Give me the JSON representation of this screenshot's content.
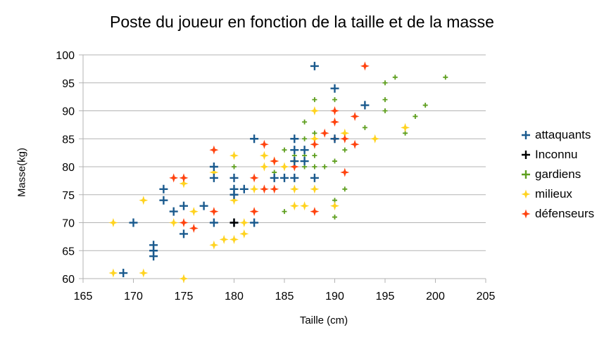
{
  "chart_data": {
    "type": "scatter",
    "title": "Poste du joueur en fonction de la taille et de la masse",
    "xlabel": "Taille (cm)",
    "ylabel": "Masse(kg)",
    "xlim": [
      165,
      205
    ],
    "ylim": [
      60,
      100
    ],
    "x_ticks": [
      165,
      170,
      175,
      180,
      185,
      190,
      195,
      200,
      205
    ],
    "y_ticks": [
      60,
      65,
      70,
      75,
      80,
      85,
      90,
      95,
      100
    ],
    "grid": "horizontal",
    "legend_position": "right",
    "series": [
      {
        "name": "attaquants",
        "color": "#1a5a8e",
        "marker": "cross",
        "points": [
          [
            169,
            61
          ],
          [
            170,
            70
          ],
          [
            172,
            64
          ],
          [
            172,
            65
          ],
          [
            172,
            66
          ],
          [
            173,
            74
          ],
          [
            173,
            76
          ],
          [
            174,
            72
          ],
          [
            175,
            68
          ],
          [
            175,
            73
          ],
          [
            177,
            73
          ],
          [
            178,
            70
          ],
          [
            178,
            78
          ],
          [
            178,
            80
          ],
          [
            180,
            70
          ],
          [
            180,
            75
          ],
          [
            180,
            76
          ],
          [
            180,
            78
          ],
          [
            181,
            76
          ],
          [
            182,
            70
          ],
          [
            182,
            85
          ],
          [
            184,
            78
          ],
          [
            185,
            78
          ],
          [
            186,
            78
          ],
          [
            186,
            81
          ],
          [
            186,
            83
          ],
          [
            186,
            85
          ],
          [
            187,
            81
          ],
          [
            187,
            83
          ],
          [
            188,
            78
          ],
          [
            188,
            98
          ],
          [
            190,
            85
          ],
          [
            190,
            94
          ],
          [
            193,
            91
          ]
        ]
      },
      {
        "name": "Inconnu",
        "color": "#000000",
        "marker": "cross",
        "points": [
          [
            180,
            70
          ]
        ]
      },
      {
        "name": "gardiens",
        "color": "#5e9f1f",
        "marker": "small-cross",
        "points": [
          [
            180,
            80
          ],
          [
            183,
            80
          ],
          [
            184,
            79
          ],
          [
            185,
            72
          ],
          [
            185,
            80
          ],
          [
            185,
            83
          ],
          [
            186,
            76
          ],
          [
            186,
            82
          ],
          [
            187,
            80
          ],
          [
            187,
            82
          ],
          [
            187,
            83
          ],
          [
            187,
            85
          ],
          [
            187,
            88
          ],
          [
            188,
            80
          ],
          [
            188,
            82
          ],
          [
            188,
            84
          ],
          [
            188,
            86
          ],
          [
            188,
            92
          ],
          [
            189,
            80
          ],
          [
            190,
            71
          ],
          [
            190,
            74
          ],
          [
            190,
            81
          ],
          [
            190,
            85
          ],
          [
            190,
            88
          ],
          [
            190,
            92
          ],
          [
            191,
            76
          ],
          [
            191,
            83
          ],
          [
            193,
            87
          ],
          [
            195,
            90
          ],
          [
            195,
            92
          ],
          [
            195,
            95
          ],
          [
            196,
            96
          ],
          [
            197,
            86
          ],
          [
            198,
            89
          ],
          [
            199,
            91
          ],
          [
            201,
            96
          ]
        ]
      },
      {
        "name": "milieux",
        "color": "#ffd320",
        "marker": "star",
        "points": [
          [
            168,
            61
          ],
          [
            168,
            70
          ],
          [
            171,
            61
          ],
          [
            171,
            74
          ],
          [
            174,
            70
          ],
          [
            175,
            60
          ],
          [
            175,
            77
          ],
          [
            176,
            72
          ],
          [
            178,
            66
          ],
          [
            178,
            79
          ],
          [
            179,
            67
          ],
          [
            180,
            67
          ],
          [
            180,
            74
          ],
          [
            180,
            82
          ],
          [
            181,
            68
          ],
          [
            181,
            70
          ],
          [
            182,
            76
          ],
          [
            183,
            80
          ],
          [
            183,
            82
          ],
          [
            184,
            81
          ],
          [
            185,
            80
          ],
          [
            186,
            73
          ],
          [
            186,
            76
          ],
          [
            186,
            81
          ],
          [
            187,
            73
          ],
          [
            188,
            76
          ],
          [
            188,
            85
          ],
          [
            188,
            90
          ],
          [
            190,
            73
          ],
          [
            191,
            86
          ],
          [
            194,
            85
          ],
          [
            197,
            87
          ]
        ]
      },
      {
        "name": "défenseurs",
        "color": "#ff420e",
        "marker": "star",
        "points": [
          [
            174,
            78
          ],
          [
            175,
            70
          ],
          [
            175,
            78
          ],
          [
            176,
            69
          ],
          [
            178,
            72
          ],
          [
            178,
            83
          ],
          [
            182,
            72
          ],
          [
            182,
            78
          ],
          [
            183,
            76
          ],
          [
            183,
            84
          ],
          [
            184,
            76
          ],
          [
            184,
            81
          ],
          [
            186,
            80
          ],
          [
            188,
            72
          ],
          [
            188,
            84
          ],
          [
            189,
            86
          ],
          [
            190,
            85
          ],
          [
            190,
            88
          ],
          [
            190,
            90
          ],
          [
            191,
            79
          ],
          [
            191,
            85
          ],
          [
            192,
            84
          ],
          [
            192,
            89
          ],
          [
            193,
            98
          ]
        ]
      }
    ]
  }
}
